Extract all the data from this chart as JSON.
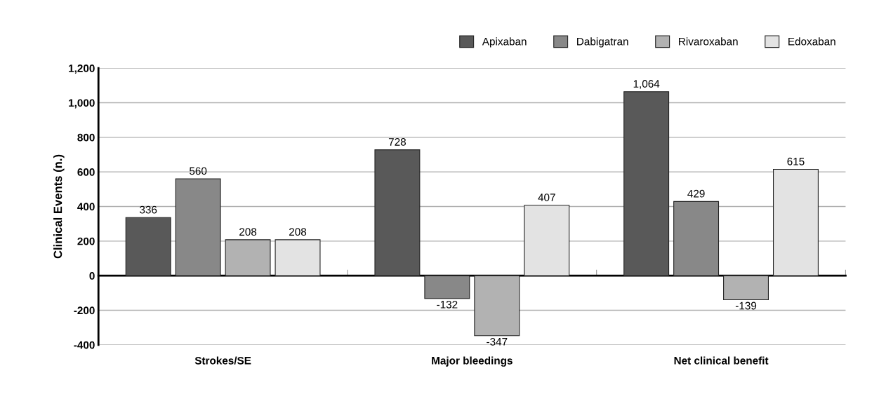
{
  "chart_data": {
    "type": "bar",
    "ylabel": "Clinical Events (n.)",
    "categories": [
      "Strokes/SE",
      "Major bleedings",
      "Net clinical benefit"
    ],
    "series": [
      {
        "name": "Apixaban",
        "color": "#595959",
        "values": [
          336,
          728,
          1064
        ],
        "value_labels": [
          "336",
          "728",
          "1,064"
        ]
      },
      {
        "name": "Dabigatran",
        "color": "#888888",
        "values": [
          560,
          -132,
          429
        ],
        "value_labels": [
          "560",
          "-132",
          "429"
        ]
      },
      {
        "name": "Rivaroxaban",
        "color": "#b2b2b2",
        "values": [
          208,
          -347,
          -139
        ],
        "value_labels": [
          "208",
          "-347",
          "-139"
        ]
      },
      {
        "name": "Edoxaban",
        "color": "#e3e3e3",
        "values": [
          208,
          407,
          615
        ],
        "value_labels": [
          "208",
          "407",
          "615"
        ]
      }
    ],
    "ylim": [
      -400,
      1200
    ],
    "yticks": [
      {
        "value": -400,
        "label": "-400"
      },
      {
        "value": -200,
        "label": "-200"
      },
      0,
      200,
      400,
      600,
      800,
      {
        "value": 1000,
        "label": "1,000"
      },
      {
        "value": 1200,
        "label": "1,200"
      }
    ],
    "grid": "y",
    "legend": "top right"
  }
}
